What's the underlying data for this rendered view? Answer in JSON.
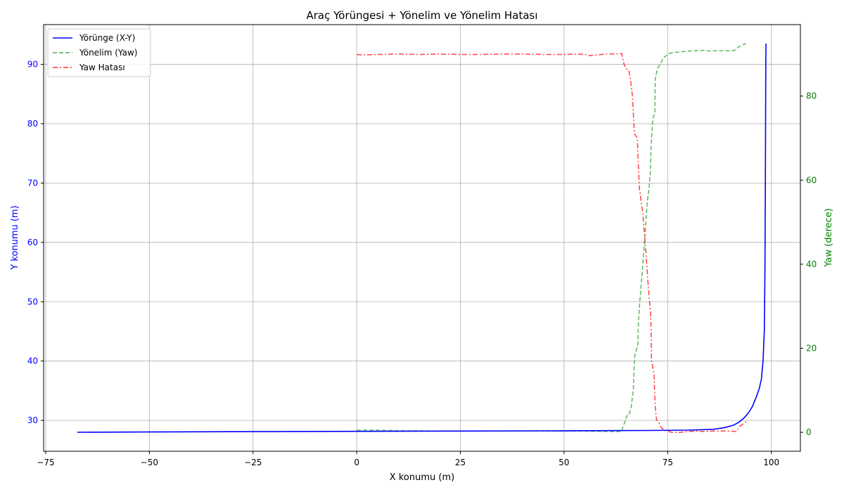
{
  "chart_data": {
    "type": "line",
    "title": "Araç Yörüngesi + Yönelim ve Yönelim Hatası",
    "xlabel": "X konumu (m)",
    "ylabel": "Y konumu (m)",
    "y2label": "Yaw (derece)",
    "xlim": [
      -75.5,
      107
    ],
    "ylim": [
      24.8,
      96.7
    ],
    "y2lim": [
      -4.5,
      97
    ],
    "xticks": [
      "−75",
      "−50",
      "−25",
      "0",
      "25",
      "50",
      "75",
      "100"
    ],
    "xtick_values": [
      -75,
      -50,
      -25,
      0,
      25,
      50,
      75,
      100
    ],
    "yticks": [
      "30",
      "40",
      "50",
      "60",
      "70",
      "80",
      "90"
    ],
    "ytick_values": [
      30,
      40,
      50,
      60,
      70,
      80,
      90
    ],
    "y2ticks": [
      "0",
      "20",
      "40",
      "60",
      "80"
    ],
    "y2tick_values": [
      0,
      20,
      40,
      60,
      80
    ],
    "grid": true,
    "legend_position": "upper-left",
    "colors": {
      "left_axis": "#0000ff",
      "right_axis": "#008000",
      "grid": "#b0b0b0"
    },
    "series": [
      {
        "name": "Yörünge (X-Y)",
        "axis": "left",
        "color": "#0000ff",
        "dash": "solid",
        "x": [
          -67.4,
          -50,
          -25,
          0,
          25,
          50,
          70,
          80,
          86,
          88.9,
          90.9,
          92.2,
          93.4,
          94.4,
          95.4,
          96.4,
          97.1,
          97.6,
          98.0,
          98.3,
          98.45,
          98.55,
          98.6,
          98.65,
          98.7
        ],
        "y": [
          28.0,
          28.05,
          28.1,
          28.15,
          28.2,
          28.25,
          28.3,
          28.35,
          28.5,
          28.8,
          29.2,
          29.7,
          30.4,
          31.2,
          32.3,
          34.0,
          35.4,
          37.0,
          40.0,
          45.0,
          55.0,
          70.0,
          80.0,
          90.0,
          93.5
        ]
      },
      {
        "name": "Yönelim (Yaw)",
        "axis": "right",
        "color": "#4caf50",
        "dash": "dashed",
        "x": [
          0,
          5,
          10,
          20,
          30,
          40,
          50,
          55,
          60,
          63.9,
          64.3,
          64.7,
          65.2,
          65.6,
          66.2,
          66.7,
          67.0,
          67.3,
          67.8,
          67.9,
          68.2,
          69.0,
          69.6,
          70.1,
          70.5,
          70.8,
          71.0,
          71.3,
          71.5,
          71.9,
          72.0,
          72.4,
          72.8,
          73.2,
          73.9,
          74.5,
          75.0,
          76.0,
          78.0,
          80.0,
          82.0,
          84.0,
          85.0,
          87.0,
          89.0,
          91.0,
          92.0,
          93.0,
          93.9
        ],
        "y": [
          0.5,
          0.5,
          0.4,
          0.3,
          0.3,
          0.3,
          0.3,
          0.3,
          0.2,
          0.2,
          1.5,
          2.5,
          4.0,
          4.0,
          6.0,
          10.0,
          18.0,
          19.0,
          21.0,
          25.0,
          30.0,
          40.0,
          48.0,
          55.0,
          58.0,
          62.0,
          68.0,
          73.0,
          75.0,
          76.0,
          84.0,
          86.0,
          87.0,
          87.5,
          89.0,
          89.5,
          90.0,
          90.3,
          90.5,
          90.7,
          90.8,
          90.9,
          90.7,
          90.8,
          90.8,
          90.8,
          91.6,
          92.2,
          92.5
        ]
      },
      {
        "name": "Yaw Hatası",
        "axis": "right",
        "color": "#ff2d2d",
        "dash": "dashdot",
        "x": [
          0,
          1,
          5,
          10,
          15,
          20,
          25,
          30,
          35,
          40,
          45,
          50,
          55,
          56,
          60,
          63.9,
          64.5,
          65.0,
          65.6,
          66.0,
          66.5,
          66.8,
          67.0,
          67.7,
          67.8,
          68.2,
          69.0,
          69.8,
          70.3,
          70.8,
          71.0,
          71.1,
          71.5,
          71.7,
          72.0,
          72.3,
          72.8,
          73.5,
          73.9,
          74.0,
          75.0,
          76.0,
          77.0,
          78.0,
          79.0,
          80.0,
          82.0,
          84.0,
          86.0,
          88.0,
          90.0,
          91.5,
          92.5,
          93.9
        ],
        "y": [
          89.9,
          89.8,
          89.9,
          90.0,
          89.9,
          90.0,
          89.9,
          89.9,
          90.0,
          90.0,
          89.9,
          89.9,
          90.0,
          89.6,
          90.0,
          90.1,
          87.5,
          86.5,
          86.2,
          84.0,
          80.0,
          74.0,
          71.0,
          70.0,
          66.0,
          58.0,
          52.0,
          42.0,
          35.0,
          29.0,
          25.0,
          17.0,
          15.0,
          14.0,
          6.0,
          3.0,
          2.5,
          1.0,
          0.8,
          0.5,
          0.3,
          0.0,
          0.0,
          0.0,
          0.1,
          0.2,
          0.3,
          0.2,
          0.3,
          0.3,
          0.3,
          0.2,
          1.5,
          2.5
        ]
      }
    ]
  }
}
